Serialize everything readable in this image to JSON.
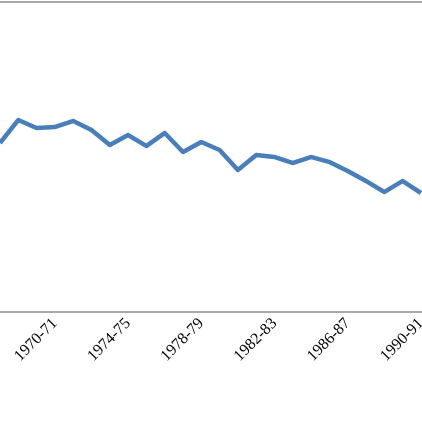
{
  "chart_data": {
    "type": "line",
    "categories": [
      null,
      null,
      null,
      "1970-71",
      null,
      null,
      null,
      "1974-75",
      null,
      null,
      null,
      "1978-79",
      null,
      null,
      null,
      "1982-83",
      null,
      null,
      null,
      "1986-87",
      null,
      null,
      null,
      "1990-91"
    ],
    "values": [
      169,
      192,
      184,
      185,
      191,
      182,
      167,
      177,
      166,
      179,
      160,
      170,
      162,
      142,
      157,
      155,
      149,
      155,
      150,
      141,
      131,
      120,
      131,
      119
    ],
    "color": "#4a7ebb",
    "ylim": [
      0,
      310
    ]
  }
}
